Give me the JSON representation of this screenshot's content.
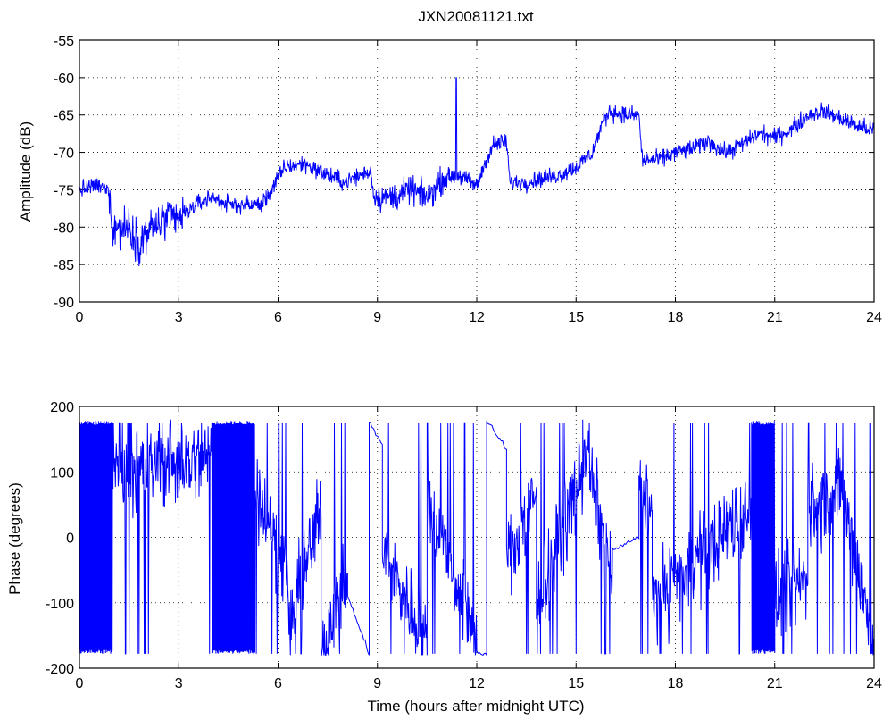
{
  "chart_data": [
    {
      "type": "line",
      "title": "JXN20081121.txt",
      "xlabel": "",
      "ylabel": "Amplitude (dB)",
      "xlim": [
        0,
        24
      ],
      "ylim": [
        -90,
        -55
      ],
      "xticks": [
        "0",
        "3",
        "6",
        "9",
        "12",
        "15",
        "18",
        "21",
        "24"
      ],
      "yticks": [
        "-90",
        "-85",
        "-80",
        "-75",
        "-70",
        "-65",
        "-60",
        "-55"
      ],
      "grid": true,
      "series": [
        {
          "color": "#0000ff",
          "x": [
            0,
            0.5,
            0.9,
            1.0,
            1.5,
            1.8,
            2.2,
            2.6,
            3.0,
            3.5,
            4.0,
            4.5,
            5.0,
            5.5,
            5.8,
            6.2,
            6.8,
            7.5,
            8.0,
            8.5,
            8.8,
            8.9,
            9.5,
            10.0,
            10.5,
            11.0,
            11.35,
            11.45,
            11.8,
            12.0,
            12.2,
            12.5,
            12.9,
            13.0,
            13.5,
            14.0,
            14.5,
            15.0,
            15.5,
            15.8,
            16.0,
            16.5,
            16.9,
            17.0,
            17.5,
            18.0,
            18.5,
            19.0,
            19.5,
            20.0,
            20.5,
            21.0,
            21.5,
            22.0,
            22.5,
            23.0,
            23.5,
            24.0
          ],
          "values": [
            -75,
            -74.5,
            -75,
            -80,
            -80,
            -82,
            -80,
            -79,
            -79,
            -77,
            -76,
            -77,
            -77,
            -77,
            -75,
            -72,
            -71.5,
            -73,
            -74,
            -73,
            -72.5,
            -76,
            -76,
            -75,
            -76,
            -73.5,
            -73,
            -73,
            -74,
            -74.5,
            -72,
            -69,
            -68.5,
            -74,
            -74,
            -73.5,
            -73,
            -72,
            -70,
            -66,
            -64.5,
            -65,
            -65,
            -71,
            -71,
            -70,
            -69.5,
            -68.5,
            -70,
            -69,
            -67.5,
            -68,
            -67,
            -65,
            -64.5,
            -65.5,
            -66.5,
            -67
          ],
          "spikes": [
            {
              "x": 11.38,
              "value": -60
            }
          ]
        }
      ]
    },
    {
      "type": "line",
      "title": "",
      "xlabel": "Time (hours after midnight UTC)",
      "ylabel": "Phase (degrees)",
      "xlim": [
        0,
        24
      ],
      "ylim": [
        -200,
        200
      ],
      "xticks": [
        "0",
        "3",
        "6",
        "9",
        "12",
        "15",
        "18",
        "21",
        "24"
      ],
      "yticks": [
        "-200",
        "-100",
        "0",
        "100",
        "200"
      ],
      "grid": true,
      "series": [
        {
          "color": "#0000ff",
          "segments": [
            {
              "x0": 0.0,
              "x1": 1.0,
              "mode": "wrap"
            },
            {
              "x0": 1.0,
              "x1": 4.0,
              "mode": "noisy",
              "start": 100,
              "end": 120
            },
            {
              "x0": 4.0,
              "x1": 5.3,
              "mode": "wrap"
            },
            {
              "x0": 5.3,
              "x1": 6.3,
              "mode": "noisy",
              "start": 80,
              "end": -60
            },
            {
              "x0": 6.3,
              "x1": 7.3,
              "mode": "noisy",
              "start": -140,
              "end": 40
            },
            {
              "x0": 7.3,
              "x1": 8.1,
              "mode": "noisy",
              "start": -160,
              "end": -60
            },
            {
              "x0": 8.1,
              "x1": 8.75,
              "mode": "drift",
              "start": -90,
              "end": -178
            },
            {
              "x0": 8.75,
              "x1": 9.15,
              "mode": "drift",
              "start": 178,
              "end": 140
            },
            {
              "x0": 9.15,
              "x1": 10.5,
              "mode": "noisy",
              "start": -20,
              "end": -160
            },
            {
              "x0": 10.5,
              "x1": 11.6,
              "mode": "noisy",
              "start": 60,
              "end": -100
            },
            {
              "x0": 11.6,
              "x1": 12.0,
              "mode": "noisy",
              "start": -80,
              "end": -170
            },
            {
              "x0": 12.0,
              "x1": 12.3,
              "mode": "drift",
              "start": -175,
              "end": -180
            },
            {
              "x0": 12.3,
              "x1": 12.9,
              "mode": "drift",
              "start": 178,
              "end": 135
            },
            {
              "x0": 12.9,
              "x1": 13.8,
              "mode": "noisy",
              "start": -30,
              "end": 60
            },
            {
              "x0": 13.8,
              "x1": 15.2,
              "mode": "noisy",
              "start": -100,
              "end": 100
            },
            {
              "x0": 15.2,
              "x1": 16.1,
              "mode": "noisy",
              "start": 150,
              "end": -60
            },
            {
              "x0": 16.1,
              "x1": 16.9,
              "mode": "drift",
              "start": -20,
              "end": 0
            },
            {
              "x0": 16.9,
              "x1": 17.3,
              "mode": "noisy",
              "start": 90,
              "end": 40
            },
            {
              "x0": 17.3,
              "x1": 20.3,
              "mode": "noisy",
              "start": -100,
              "end": 50
            },
            {
              "x0": 20.3,
              "x1": 21.0,
              "mode": "wrap"
            },
            {
              "x0": 21.0,
              "x1": 22.0,
              "mode": "noisy",
              "start": -100,
              "end": -60
            },
            {
              "x0": 22.0,
              "x1": 23.0,
              "mode": "noisy",
              "start": 40,
              "end": 70
            },
            {
              "x0": 23.0,
              "x1": 24.0,
              "mode": "noisy",
              "start": 80,
              "end": -170
            }
          ]
        }
      ]
    }
  ]
}
